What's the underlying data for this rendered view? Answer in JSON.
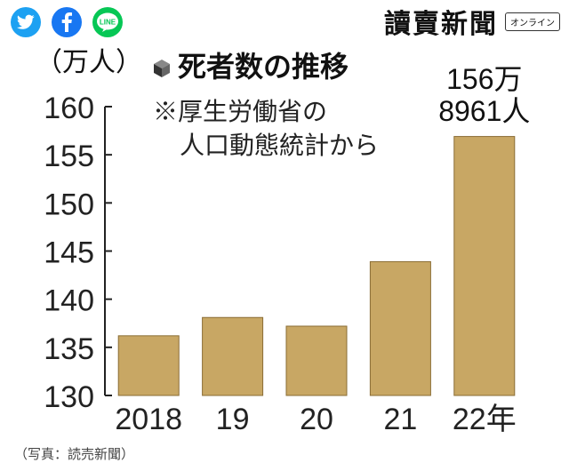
{
  "share": {
    "twitter_icon": "twitter-bird-icon",
    "facebook_icon": "facebook-f-icon",
    "line_label": "LINE",
    "colors": {
      "twitter": "#1da1f2",
      "facebook": "#1877f2",
      "line": "#06c755"
    }
  },
  "masthead": {
    "brand": "讀賣新聞",
    "badge": "オンライン"
  },
  "caption": "（写真：読売新聞）",
  "chart_data": {
    "type": "bar",
    "title": "死者数の推移",
    "subtitle_lines": [
      "※厚生労働省の",
      "人口動態統計から"
    ],
    "ylabel": "（万人）",
    "categories": [
      "2018",
      "19",
      "20",
      "21",
      "22年"
    ],
    "values": [
      136.2,
      138.1,
      137.2,
      143.9,
      156.9
    ],
    "ylim": [
      130,
      160
    ],
    "yticks": [
      130,
      135,
      140,
      145,
      150,
      155,
      160
    ],
    "annotation_lines": [
      "156万",
      "8961人"
    ],
    "bar_color": "#c8a764",
    "grid": false
  }
}
